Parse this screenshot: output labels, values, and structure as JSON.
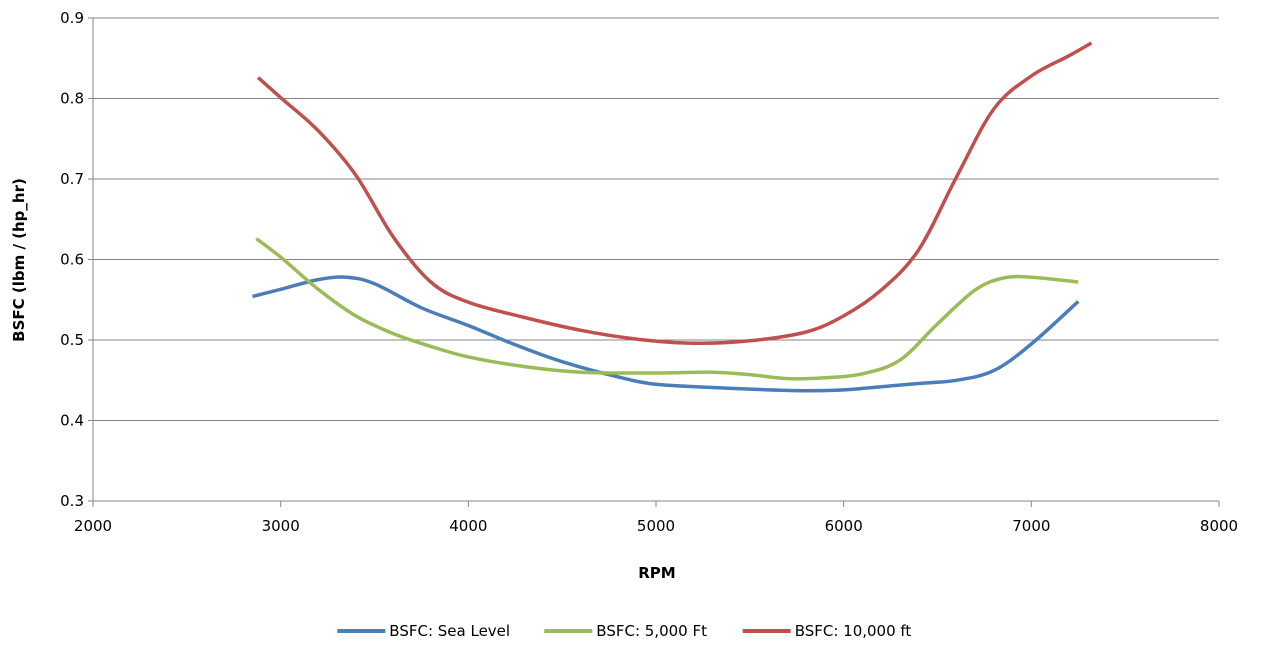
{
  "chart_data": {
    "type": "line",
    "title": "",
    "xlabel": "RPM",
    "ylabel": "BSFC (lbm / (hp_hr)",
    "xlim": [
      2000,
      8000
    ],
    "ylim": [
      0.3,
      0.9
    ],
    "xticks": [
      "2000",
      "3000",
      "4000",
      "5000",
      "6000",
      "7000",
      "8000"
    ],
    "yticks": [
      "0.3",
      "0.4",
      "0.5",
      "0.6",
      "0.7",
      "0.8",
      "0.9"
    ],
    "grid": "horizontal",
    "legend_position": "bottom",
    "series": [
      {
        "name": "BSFC: Sea Level",
        "color": "#4A7EBB",
        "x": [
          2850,
          3000,
          3200,
          3350,
          3500,
          3750,
          4000,
          4250,
          4500,
          4800,
          5000,
          5300,
          5600,
          5800,
          6000,
          6200,
          6400,
          6600,
          6800,
          7000,
          7250
        ],
        "y": [
          0.554,
          0.563,
          0.575,
          0.578,
          0.57,
          0.54,
          0.518,
          0.494,
          0.473,
          0.454,
          0.445,
          0.441,
          0.438,
          0.437,
          0.438,
          0.442,
          0.446,
          0.45,
          0.462,
          0.495,
          0.548
        ]
      },
      {
        "name": "BSFC: 5,000 Ft",
        "color": "#9BBB59",
        "x": [
          2870,
          3000,
          3200,
          3400,
          3600,
          3800,
          4000,
          4300,
          4600,
          5000,
          5300,
          5500,
          5700,
          5900,
          6100,
          6300,
          6500,
          6700,
          6850,
          7000,
          7250
        ],
        "y": [
          0.626,
          0.603,
          0.563,
          0.53,
          0.508,
          0.492,
          0.479,
          0.467,
          0.46,
          0.459,
          0.46,
          0.457,
          0.452,
          0.453,
          0.458,
          0.475,
          0.52,
          0.562,
          0.577,
          0.578,
          0.572
        ]
      },
      {
        "name": "BSFC: 10,000 ft",
        "color": "#C0504D",
        "x": [
          2880,
          3000,
          3200,
          3400,
          3600,
          3800,
          4000,
          4300,
          4600,
          4900,
          5200,
          5500,
          5800,
          6000,
          6200,
          6400,
          6600,
          6800,
          7000,
          7200,
          7320
        ],
        "y": [
          0.826,
          0.801,
          0.76,
          0.705,
          0.628,
          0.572,
          0.547,
          0.528,
          0.512,
          0.501,
          0.496,
          0.499,
          0.51,
          0.53,
          0.562,
          0.612,
          0.702,
          0.787,
          0.828,
          0.853,
          0.869
        ]
      }
    ]
  }
}
